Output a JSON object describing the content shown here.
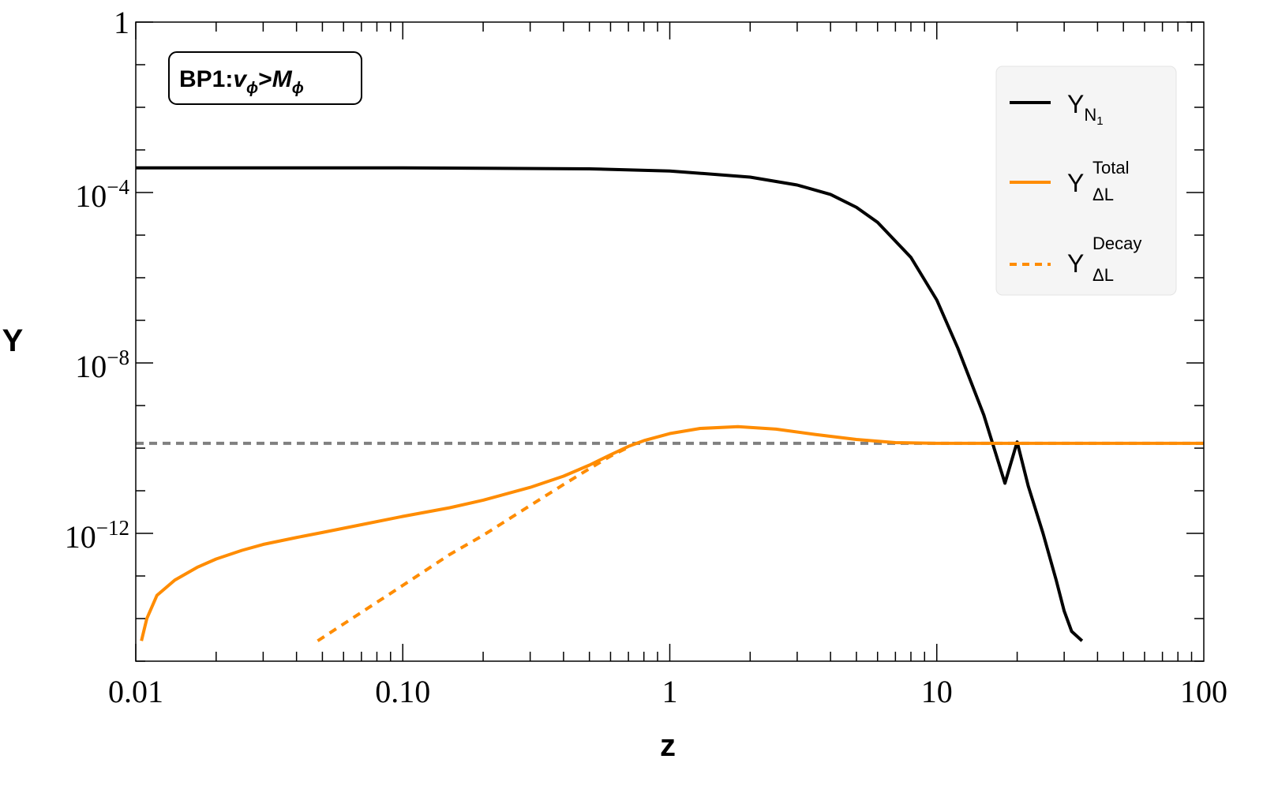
{
  "chart_data": {
    "type": "line",
    "xlabel": "z",
    "ylabel": "Y",
    "xscale": "log",
    "yscale": "log",
    "xlim": [
      0.01,
      100
    ],
    "ylim": [
      3e-15,
      1
    ],
    "grid": false,
    "legend_position": "top-right",
    "annotation": {
      "prefix": "BP1:",
      "v_base": "v",
      "v_sub": "ϕ",
      "op": ">",
      "M_base": "M",
      "M_sub": "ϕ"
    },
    "x_ticks": [
      {
        "value": 0.01,
        "label": "0.01"
      },
      {
        "value": 0.1,
        "label": "0.10"
      },
      {
        "value": 1,
        "label": "1"
      },
      {
        "value": 10,
        "label": "10"
      },
      {
        "value": 100,
        "label": "100"
      }
    ],
    "y_ticks": [
      {
        "value": 1,
        "base": "1",
        "exp": ""
      },
      {
        "value": 0.0001,
        "base": "10",
        "exp": "−4"
      },
      {
        "value": 1e-08,
        "base": "10",
        "exp": "−8"
      },
      {
        "value": 1e-12,
        "base": "10",
        "exp": "−12"
      }
    ],
    "reference_line": {
      "y": 1.3e-10,
      "color": "#808080",
      "style": "dashed"
    },
    "series": [
      {
        "label_base": "Y",
        "label_sub": "N",
        "label_subsub": "1",
        "label_sup": "",
        "color": "#000000",
        "style": "solid",
        "x": [
          0.01,
          0.1,
          0.5,
          1,
          2,
          3,
          4,
          5,
          6,
          8,
          10,
          12,
          15,
          18,
          20,
          22,
          25,
          28,
          30,
          32,
          35
        ],
        "y": [
          0.00038,
          0.00038,
          0.00036,
          0.00032,
          0.00023,
          0.00015,
          9e-05,
          4.5e-05,
          2e-05,
          3e-06,
          3e-07,
          2.2e-08,
          6e-10,
          1.5e-11,
          1.4e-10,
          1.3e-11,
          1e-12,
          8e-14,
          1.5e-14,
          5e-15,
          3e-15
        ]
      },
      {
        "label_base": "Y",
        "label_sub": "ΔL",
        "label_subsub": "",
        "label_sup": "Total",
        "color": "#ff8c00",
        "style": "solid",
        "x": [
          0.0105,
          0.011,
          0.012,
          0.014,
          0.017,
          0.02,
          0.025,
          0.03,
          0.04,
          0.05,
          0.07,
          0.1,
          0.15,
          0.2,
          0.3,
          0.4,
          0.5,
          0.6,
          0.7,
          0.8,
          1,
          1.3,
          1.8,
          2.5,
          3.5,
          5,
          7,
          10,
          20,
          50,
          100
        ],
        "y": [
          3e-15,
          1e-14,
          3.5e-14,
          8e-14,
          1.6e-13,
          2.5e-13,
          4e-13,
          5.5e-13,
          8e-13,
          1.05e-12,
          1.6e-12,
          2.5e-12,
          4e-12,
          6e-12,
          1.2e-11,
          2.2e-11,
          4e-11,
          7e-11,
          1.1e-10,
          1.5e-10,
          2.2e-10,
          2.9e-10,
          3.2e-10,
          2.8e-10,
          2.1e-10,
          1.6e-10,
          1.35e-10,
          1.3e-10,
          1.3e-10,
          1.3e-10,
          1.3e-10
        ]
      },
      {
        "label_base": "Y",
        "label_sub": "ΔL",
        "label_subsub": "",
        "label_sup": "Decay",
        "color": "#ff8c00",
        "style": "dashed",
        "x": [
          0.048,
          0.07,
          0.1,
          0.15,
          0.2,
          0.3,
          0.4,
          0.5,
          0.6,
          0.7
        ],
        "y": [
          3e-15,
          1.4e-14,
          6e-14,
          3.2e-13,
          9e-13,
          4.5e-12,
          1.4e-11,
          3.3e-11,
          6.5e-11,
          1.05e-10
        ]
      }
    ]
  }
}
